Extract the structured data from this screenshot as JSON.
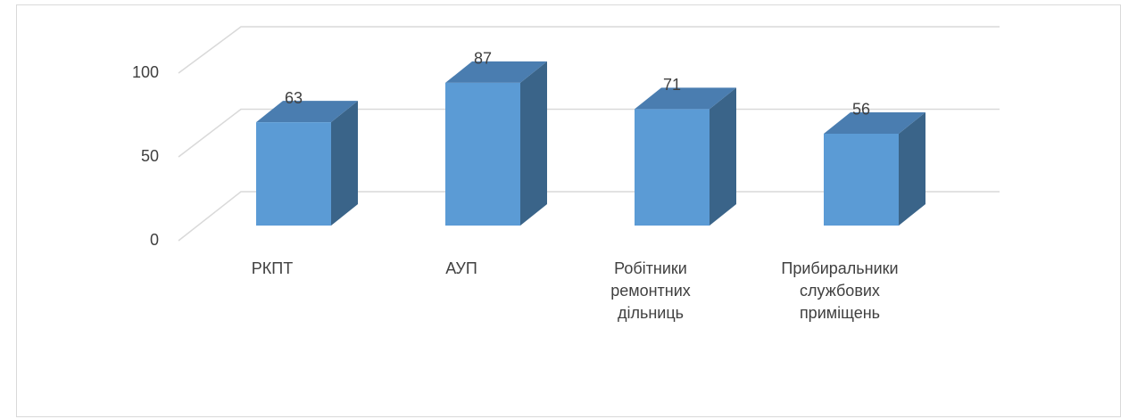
{
  "chart_data": {
    "type": "bar",
    "categories": [
      "РКПТ",
      "АУП",
      "Робітники ремонтних дільниць",
      "Прибиральники службових приміщень"
    ],
    "values": [
      63,
      87,
      71,
      56
    ],
    "color": "#5b9bd5",
    "ylim": [
      0,
      100
    ],
    "yticks": [
      0,
      50,
      100
    ],
    "grid": true
  }
}
